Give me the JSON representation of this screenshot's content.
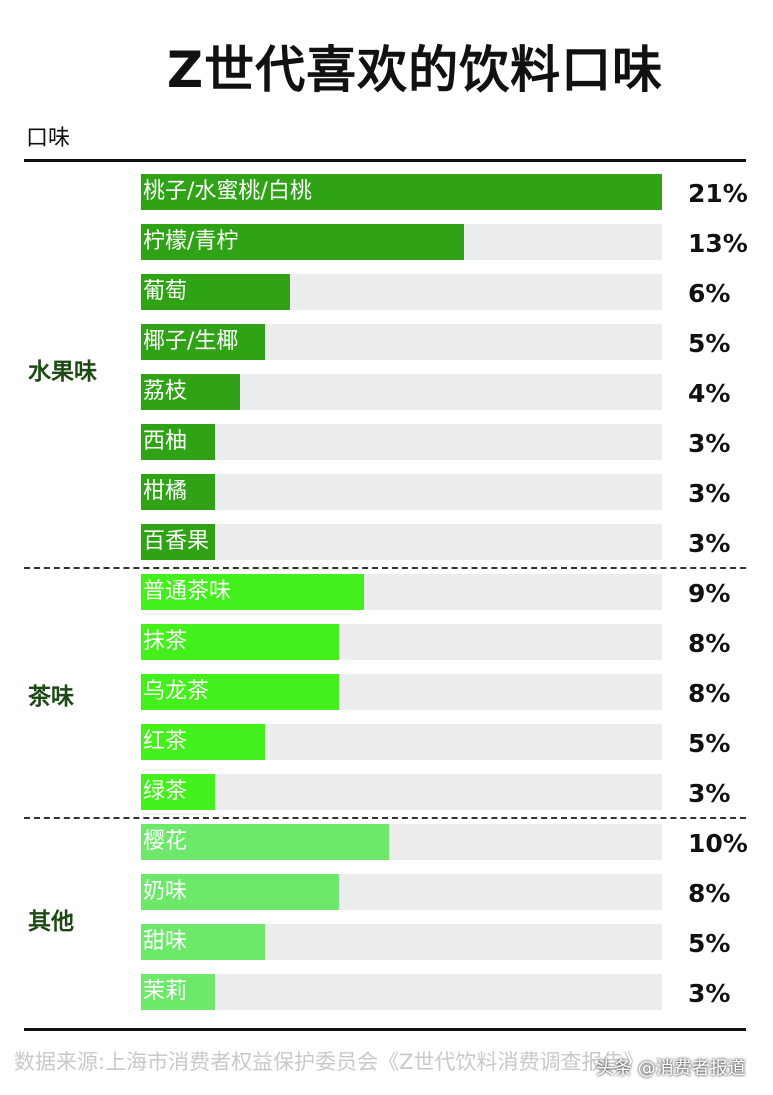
{
  "title": "Z世代喜欢的饮料口味",
  "axis_label": "口味",
  "source": "数据来源:上海市消费者权益保护委员会《Z世代饮料消费调查报告》",
  "watermark": "头条 @消费者报道",
  "colors": {
    "fruit": "#2fa315",
    "tea": "#44f01b",
    "other": "#6de86b",
    "track": "#eceeee",
    "group_label": "#1d4a14"
  },
  "chart_data": {
    "type": "bar",
    "orientation": "horizontal",
    "title": "Z世代喜欢的饮料口味",
    "ylabel": "口味",
    "xlim": [
      0,
      21
    ],
    "unit": "%",
    "groups": [
      {
        "name": "水果味",
        "color": "#2fa315",
        "categories": [
          "桃子/水蜜桃/白桃",
          "柠檬/青柠",
          "葡萄",
          "椰子/生椰",
          "荔枝",
          "西柚",
          "柑橘",
          "百香果"
        ],
        "values": [
          21,
          13,
          6,
          5,
          4,
          3,
          3,
          3
        ],
        "labels": [
          "21%",
          "13%",
          "6%",
          "5%",
          "4%",
          "3%",
          "3%",
          "3%"
        ]
      },
      {
        "name": "茶味",
        "color": "#44f01b",
        "categories": [
          "普通茶味",
          "抹茶",
          "乌龙茶",
          "红茶",
          "绿茶"
        ],
        "values": [
          9,
          8,
          8,
          5,
          3
        ],
        "labels": [
          "9%",
          "8%",
          "8%",
          "5%",
          "3%"
        ]
      },
      {
        "name": "其他",
        "color": "#6de86b",
        "categories": [
          "樱花",
          "奶味",
          "甜味",
          "茉莉"
        ],
        "values": [
          10,
          8,
          5,
          3
        ],
        "labels": [
          "10%",
          "8%",
          "5%",
          "3%"
        ]
      }
    ]
  }
}
